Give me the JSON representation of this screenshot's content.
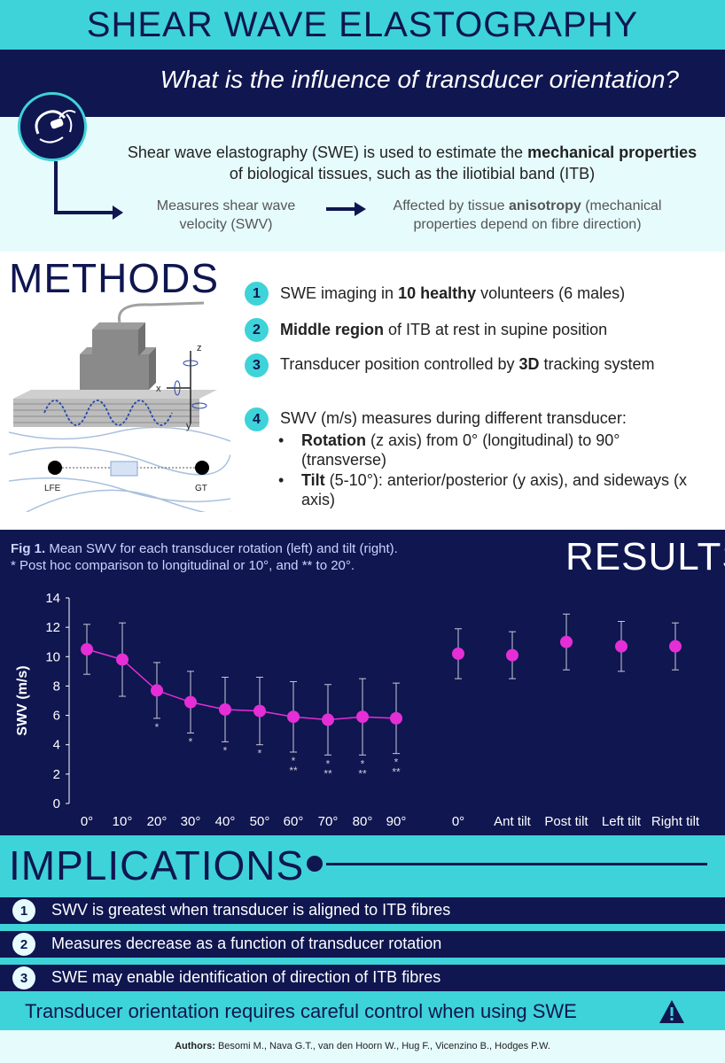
{
  "header": {
    "title": "SHEAR WAVE ELASTOGRAPHY",
    "question": "What is the influence of transducer orientation?"
  },
  "intro": {
    "text_1": "Shear wave elastography (SWE) is used to estimate the ",
    "text_bold_1": "mechanical properties",
    "text_2": " of biological tissues, such as the iliotibial band (ITB)",
    "measures": "Measures shear wave velocity (SWV)",
    "affected_1": "Affected by tissue ",
    "affected_bold": "anisotropy",
    "affected_2": " (mechanical properties depend on fibre direction)"
  },
  "methods": {
    "title": "METHODS",
    "diagram_labels": {
      "z": "z",
      "x": "x",
      "y": "y",
      "lfe": "LFE",
      "gt": "GT"
    },
    "steps": [
      {
        "num": "1",
        "pre": "SWE imaging in ",
        "bold": "10 healthy",
        "post": " volunteers (6 males)"
      },
      {
        "num": "2",
        "pre": "",
        "bold": "Middle region",
        "post": " of ITB at rest in supine position"
      },
      {
        "num": "3",
        "pre": "Transducer position controlled by ",
        "bold": "3D",
        "post": " tracking system"
      },
      {
        "num": "4",
        "pre": "SWV (m/s) measures during different transducer:",
        "bold": "",
        "post": ""
      }
    ],
    "bullets": [
      {
        "bold": "Rotation",
        "post": " (z axis) from 0° (longitudinal) to 90° (transverse)"
      },
      {
        "bold": "Tilt",
        "post": " (5-10°): anterior/posterior (y axis), and sideways (x axis)"
      }
    ]
  },
  "results": {
    "title": "RESULTS",
    "caption_bold": "Fig 1.",
    "caption_1": " Mean SWV for each transducer rotation (left) and tilt (right).",
    "caption_2": "* Post hoc comparison to longitudinal or 10°, and ** to 20°."
  },
  "chart_data": {
    "type": "scatter",
    "ylabel": "SWV (m/s)",
    "ylim": [
      0,
      14
    ],
    "yticks": [
      0,
      2,
      4,
      6,
      8,
      10,
      12,
      14
    ],
    "series": [
      {
        "name": "rotation",
        "connected": true,
        "categories": [
          "0°",
          "10°",
          "20°",
          "30°",
          "40°",
          "50°",
          "60°",
          "70°",
          "80°",
          "90°"
        ],
        "values": [
          10.5,
          9.8,
          7.7,
          6.9,
          6.4,
          6.3,
          5.9,
          5.7,
          5.9,
          5.8
        ],
        "error": [
          1.7,
          2.5,
          1.9,
          2.1,
          2.2,
          2.3,
          2.4,
          2.4,
          2.6,
          2.4
        ],
        "annotations": [
          "",
          "",
          "*",
          "*",
          "*",
          "*",
          "*\n**",
          "*\n**",
          "*\n**",
          "*\n**"
        ]
      },
      {
        "name": "tilt",
        "connected": false,
        "categories": [
          "0°",
          "Ant tilt",
          "Post tilt",
          "Left tilt",
          "Right tilt"
        ],
        "values": [
          10.2,
          10.1,
          11.0,
          10.7,
          10.7
        ],
        "error": [
          1.7,
          1.6,
          1.9,
          1.7,
          1.6
        ]
      }
    ],
    "colors": {
      "marker": "#e52ed6",
      "line": "#e52ed6",
      "error": "#c9c9d6"
    }
  },
  "implications": {
    "title": "IMPLICATIONS",
    "items": [
      {
        "num": "1",
        "text": "SWV is greatest when transducer is aligned to ITB fibres"
      },
      {
        "num": "2",
        "text": "Measures decrease as a function of transducer rotation"
      },
      {
        "num": "3",
        "text": "SWE may enable identification of direction of ITB fibres"
      }
    ],
    "conclusion": "Transducer orientation requires careful control when using SWE"
  },
  "authors": {
    "label": "Authors:",
    "names": " Besomi M., Nava G.T., van den Hoorn W., Hug F., Vicenzino B., Hodges P.W."
  },
  "colors": {
    "navy": "#0f1650",
    "teal": "#3ed3d8",
    "light": "#e6fbfc",
    "magenta": "#e52ed6"
  }
}
